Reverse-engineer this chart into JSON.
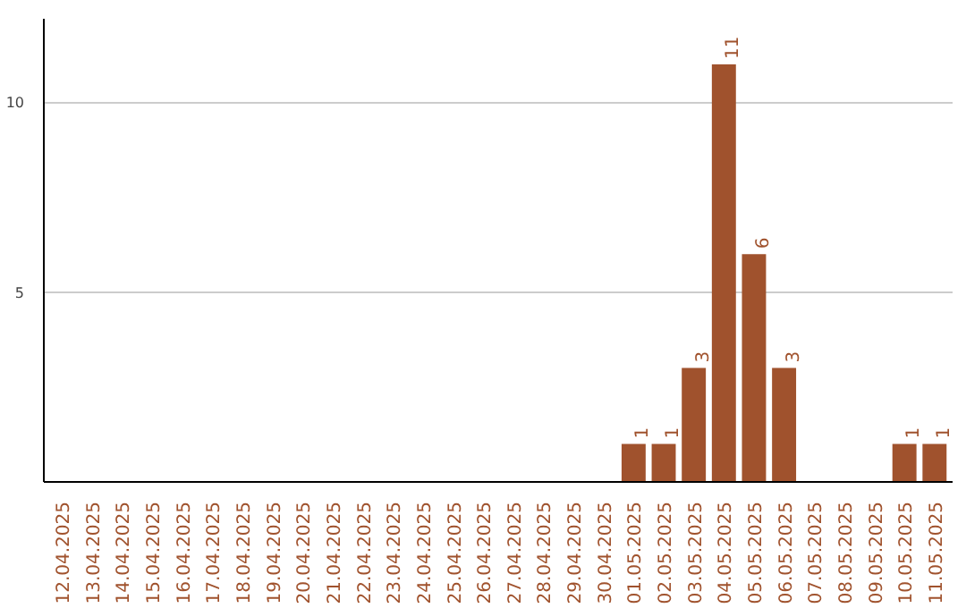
{
  "chart_data": {
    "type": "bar",
    "categories": [
      "12.04.2025",
      "13.04.2025",
      "14.04.2025",
      "15.04.2025",
      "16.04.2025",
      "17.04.2025",
      "18.04.2025",
      "19.04.2025",
      "20.04.2025",
      "21.04.2025",
      "22.04.2025",
      "23.04.2025",
      "24.04.2025",
      "25.04.2025",
      "26.04.2025",
      "27.04.2025",
      "28.04.2025",
      "29.04.2025",
      "30.04.2025",
      "01.05.2025",
      "02.05.2025",
      "03.05.2025",
      "04.05.2025",
      "05.05.2025",
      "06.05.2025",
      "07.05.2025",
      "08.05.2025",
      "09.05.2025",
      "10.05.2025",
      "11.05.2025"
    ],
    "values": [
      0,
      0,
      0,
      0,
      0,
      0,
      0,
      0,
      0,
      0,
      0,
      0,
      0,
      0,
      0,
      0,
      0,
      0,
      0,
      1,
      1,
      3,
      11,
      6,
      3,
      0,
      0,
      0,
      1,
      1
    ],
    "value_labels": [
      null,
      null,
      null,
      null,
      null,
      null,
      null,
      null,
      null,
      null,
      null,
      null,
      null,
      null,
      null,
      null,
      null,
      null,
      null,
      "1",
      "1",
      "3",
      "11",
      "6",
      "3",
      null,
      null,
      null,
      "1",
      "1"
    ],
    "color": "#a0522d",
    "ylim": [
      0,
      12.2
    ],
    "yticks": [
      5,
      10
    ],
    "grid": "y"
  }
}
